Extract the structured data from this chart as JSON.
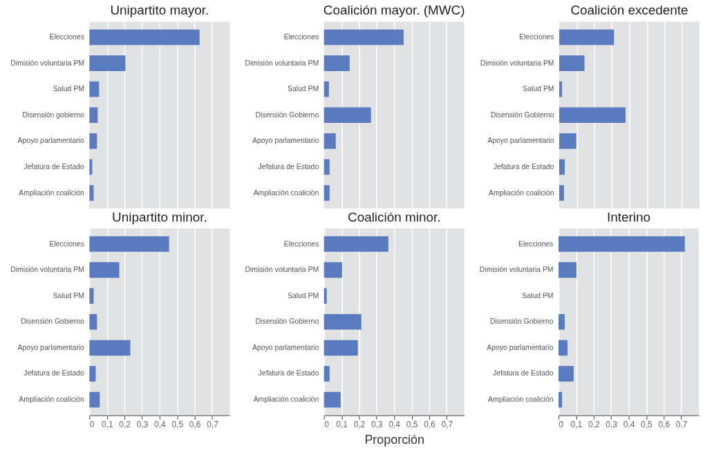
{
  "chart_data": [
    {
      "type": "bar",
      "orientation": "horizontal",
      "title": "Unipartito mayor.",
      "categories": [
        "Elecciones",
        "Dimisión voluntaria PM",
        "Salud PM",
        "Disensión gobierno",
        "Apoyo  parlamentario",
        "Jefatura de Estado",
        "Ampliación coalición"
      ],
      "values": [
        0.628,
        0.205,
        0.055,
        0.047,
        0.043,
        0.016,
        0.024
      ],
      "color": "#5a7bbf",
      "xlim": [
        0,
        0.8
      ],
      "xticks": [
        {
          "value": 0.1,
          "label": null
        },
        {
          "value": 0.2,
          "label": null
        },
        {
          "value": 0.3,
          "label": null
        },
        {
          "value": 0.4,
          "label": null
        },
        {
          "value": 0.5,
          "label": null
        },
        {
          "value": 0.6,
          "label": null
        },
        {
          "value": 0.7,
          "label": null
        }
      ],
      "grid": "x",
      "tick_labels": "y"
    },
    {
      "type": "bar",
      "orientation": "horizontal",
      "title": "Coalición mayor. (MWC)",
      "categories": [
        "Elecciones",
        "Dimisión voluntaria PM",
        "Salud PM",
        "Disensión Gobierno",
        "Apoyo  parlamentario",
        "Jefatura de Estado",
        "Ampliación coalición"
      ],
      "values": [
        0.454,
        0.146,
        0.028,
        0.268,
        0.067,
        0.032,
        0.032
      ],
      "color": "#5a7bbf",
      "xlim": [
        0,
        0.8
      ],
      "xticks": [
        {
          "value": 0.1,
          "label": null
        },
        {
          "value": 0.2,
          "label": null
        },
        {
          "value": 0.3,
          "label": null
        },
        {
          "value": 0.4,
          "label": null
        },
        {
          "value": 0.5,
          "label": null
        },
        {
          "value": 0.6,
          "label": null
        },
        {
          "value": 0.7,
          "label": null
        }
      ],
      "grid": "x",
      "tick_labels": "y"
    },
    {
      "type": "bar",
      "orientation": "horizontal",
      "title": "Coalición excedente",
      "categories": [
        "Elecciones",
        "Dimisión voluntaria PM",
        "Salud PM",
        "Disensión Gobierno",
        "Apoyo  parlamentario",
        "Jefatura de Estado",
        "Ampliación coalición"
      ],
      "values": [
        0.312,
        0.144,
        0.016,
        0.378,
        0.097,
        0.031,
        0.027
      ],
      "color": "#5a7bbf",
      "xlim": [
        0,
        0.8
      ],
      "xticks": [
        {
          "value": 0.1,
          "label": null
        },
        {
          "value": 0.2,
          "label": null
        },
        {
          "value": 0.3,
          "label": null
        },
        {
          "value": 0.4,
          "label": null
        },
        {
          "value": 0.5,
          "label": null
        },
        {
          "value": 0.6,
          "label": null
        },
        {
          "value": 0.7,
          "label": null
        }
      ],
      "grid": "x",
      "tick_labels": "y"
    },
    {
      "type": "bar",
      "orientation": "horizontal",
      "title": "Unipartito minor.",
      "categories": [
        "Elecciones",
        "Dimisión voluntaria PM",
        "Salud PM",
        "Disensión Gobierno",
        "Apoyo  parlamentario",
        "Jefatura de Estado",
        "Ampliación coalición"
      ],
      "values": [
        0.454,
        0.17,
        0.024,
        0.043,
        0.233,
        0.036,
        0.059
      ],
      "color": "#5a7bbf",
      "xlim": [
        0,
        0.8
      ],
      "xticks": [
        0,
        {
          "value": 0.1,
          "label": "0,1"
        },
        {
          "value": 0.2,
          "label": "0,2"
        },
        {
          "value": 0.3,
          "label": "0,3"
        },
        {
          "value": 0.4,
          "label": "0,4"
        },
        {
          "value": 0.5,
          "label": "0,5"
        },
        {
          "value": 0.6,
          "label": "0,6"
        },
        {
          "value": 0.7,
          "label": "0,7"
        }
      ],
      "grid": "x"
    },
    {
      "type": "bar",
      "orientation": "horizontal",
      "title": "Coalición minor.",
      "xlabel": "Proporción",
      "categories": [
        "Elecciones",
        "Dimisión voluntaria PM",
        "Salud PM",
        "Disensión Gobierno",
        "Apoyo  parlamentario",
        "Jefatura de Estado",
        "Ampliación coalición"
      ],
      "values": [
        0.367,
        0.103,
        0.016,
        0.213,
        0.193,
        0.032,
        0.095
      ],
      "color": "#5a7bbf",
      "xlim": [
        0,
        0.8
      ],
      "xticks": [
        0,
        {
          "value": 0.1,
          "label": "0,1"
        },
        {
          "value": 0.2,
          "label": "0,2"
        },
        {
          "value": 0.3,
          "label": "0,3"
        },
        {
          "value": 0.4,
          "label": "0,4"
        },
        {
          "value": 0.5,
          "label": "0,5"
        },
        {
          "value": 0.6,
          "label": "0,6"
        },
        {
          "value": 0.7,
          "label": "0,7"
        }
      ],
      "grid": "x"
    },
    {
      "type": "bar",
      "orientation": "horizontal",
      "title": "Interino",
      "categories": [
        "Elecciones",
        "Dimisión voluntaria PM",
        "Salud PM",
        "Disensión Gobierno",
        "Apoyo  parlamentario",
        "Jefatura de Estado",
        "Ampliación coalición"
      ],
      "values": [
        0.72,
        0.102,
        null,
        0.035,
        0.051,
        0.086,
        0.02
      ],
      "color": "#5a7bbf",
      "xlim": [
        0,
        0.8
      ],
      "xticks": [
        0,
        {
          "value": 0.1,
          "label": "0,1"
        },
        {
          "value": 0.2,
          "label": "0,2"
        },
        {
          "value": 0.3,
          "label": "0,3"
        },
        {
          "value": 0.4,
          "label": "0,4"
        },
        {
          "value": 0.5,
          "label": "0,5"
        },
        {
          "value": 0.6,
          "label": "0,6"
        },
        {
          "value": 0.7,
          "label": "0,7"
        }
      ],
      "grid": "x"
    }
  ]
}
